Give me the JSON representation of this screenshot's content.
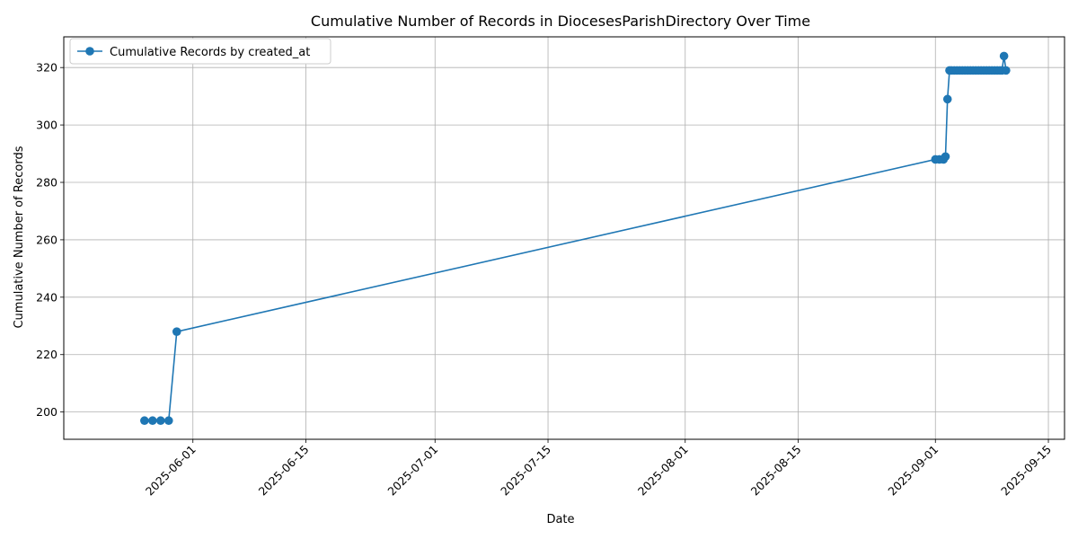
{
  "chart_data": {
    "type": "line",
    "title": "Cumulative Number of Records in DiocesesParishDirectory Over Time",
    "xlabel": "Date",
    "ylabel": "Cumulative Number of Records",
    "xlim": [
      "2025-05-16",
      "2025-09-17"
    ],
    "ylim": [
      190.5,
      330.7
    ],
    "x_ticks": [
      "2025-06-01",
      "2025-06-15",
      "2025-07-01",
      "2025-07-15",
      "2025-08-01",
      "2025-08-15",
      "2025-09-01",
      "2025-09-15"
    ],
    "y_ticks": [
      200,
      220,
      240,
      260,
      280,
      300,
      320
    ],
    "grid": true,
    "legend_position": "upper-left",
    "color": "#1f77b4",
    "series": [
      {
        "name": "Cumulative Records by created_at",
        "points": [
          {
            "x": "2025-05-26",
            "y": 197
          },
          {
            "x": "2025-05-27",
            "y": 197
          },
          {
            "x": "2025-05-28",
            "y": 197
          },
          {
            "x": "2025-05-29",
            "y": 197
          },
          {
            "x": "2025-05-30",
            "y": 228
          },
          {
            "x": "2025-09-01",
            "y": 288
          },
          {
            "x": "2025-09-01",
            "y": 288
          },
          {
            "x": "2025-09-02",
            "y": 288
          },
          {
            "x": "2025-09-02",
            "y": 289
          },
          {
            "x": "2025-09-02",
            "y": 309
          },
          {
            "x": "2025-09-02",
            "y": 319
          },
          {
            "x": "2025-09-03",
            "y": 319
          },
          {
            "x": "2025-09-03",
            "y": 319
          },
          {
            "x": "2025-09-03",
            "y": 319
          },
          {
            "x": "2025-09-04",
            "y": 319
          },
          {
            "x": "2025-09-04",
            "y": 319
          },
          {
            "x": "2025-09-04",
            "y": 319
          },
          {
            "x": "2025-09-05",
            "y": 319
          },
          {
            "x": "2025-09-05",
            "y": 319
          },
          {
            "x": "2025-09-05",
            "y": 319
          },
          {
            "x": "2025-09-06",
            "y": 319
          },
          {
            "x": "2025-09-06",
            "y": 319
          },
          {
            "x": "2025-09-06",
            "y": 319
          },
          {
            "x": "2025-09-07",
            "y": 319
          },
          {
            "x": "2025-09-07",
            "y": 319
          },
          {
            "x": "2025-09-07",
            "y": 319
          },
          {
            "x": "2025-09-08",
            "y": 319
          },
          {
            "x": "2025-09-08",
            "y": 319
          },
          {
            "x": "2025-09-08",
            "y": 319
          },
          {
            "x": "2025-09-09",
            "y": 319
          },
          {
            "x": "2025-09-09",
            "y": 319
          },
          {
            "x": "2025-09-09",
            "y": 324
          },
          {
            "x": "2025-09-09",
            "y": 319
          }
        ]
      }
    ]
  }
}
